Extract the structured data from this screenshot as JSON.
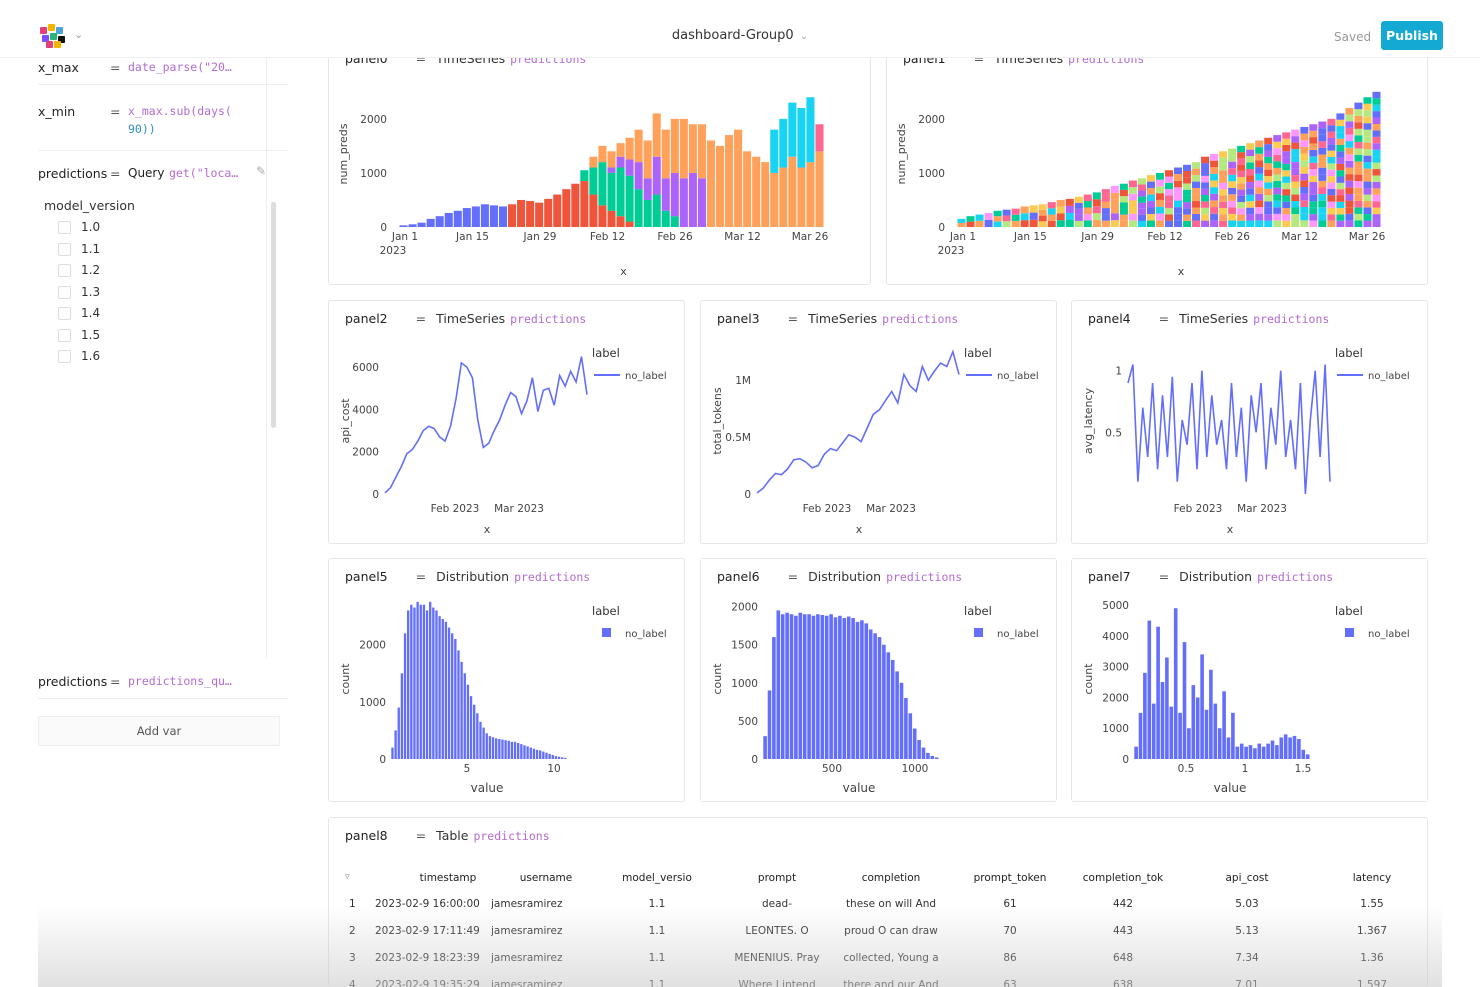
{
  "header": {
    "title": "dashboard-Group0",
    "saved_label": "Saved",
    "publish_label": "Publish",
    "logo_colors": [
      "#e23f7b",
      "#f4b400",
      "#4aa3df",
      "#7c4dff",
      "#2ab57d",
      "#111111"
    ]
  },
  "sidebar": {
    "vars": [
      {
        "name": "x_max",
        "expr_fn": "date_parse(\"20…",
        "expr_rest": ""
      },
      {
        "name": "x_min",
        "expr_fn": "x_max.sub(days(",
        "expr_rest": "90))"
      },
      {
        "name": "predictions",
        "expr_prefix": "Query",
        "expr_fn": "get(\"loca…"
      }
    ],
    "model_version_title": "model_version",
    "model_versions": [
      "1.0",
      "1.1",
      "1.2",
      "1.3",
      "1.4",
      "1.5",
      "1.6"
    ],
    "predictions2": {
      "name": "predictions",
      "expr": "predictions_qu…"
    },
    "add_var_label": "Add var"
  },
  "panels": {
    "panel0": {
      "name": "panel0",
      "type": "TimeSeries",
      "query": "predictions",
      "ylabel": "num_preds",
      "xlabel": "x",
      "yticks": [
        "2000",
        "1000",
        "0"
      ],
      "xticks": [
        "Jan 1",
        "Jan 15",
        "Jan 29",
        "Feb 12",
        "Feb 26",
        "Mar 12",
        "Mar 26"
      ],
      "year": "2023"
    },
    "panel1": {
      "name": "panel1",
      "type": "TimeSeries",
      "query": "predictions",
      "ylabel": "num_preds",
      "xlabel": "x",
      "yticks": [
        "2000",
        "1000",
        "0"
      ],
      "xticks": [
        "Jan 1",
        "Jan 15",
        "Jan 29",
        "Feb 12",
        "Feb 26",
        "Mar 12",
        "Mar 26"
      ],
      "year": "2023"
    },
    "panel2": {
      "name": "panel2",
      "type": "TimeSeries",
      "query": "predictions",
      "ylabel": "api_cost",
      "xlabel": "x",
      "yticks": [
        "6000",
        "4000",
        "2000",
        "0"
      ],
      "xticks": [
        "Feb 2023",
        "Mar 2023"
      ],
      "legend_title": "label",
      "legend_item": "no_label"
    },
    "panel3": {
      "name": "panel3",
      "type": "TimeSeries",
      "query": "predictions",
      "ylabel": "total_tokens",
      "xlabel": "x",
      "yticks": [
        "1M",
        "0.5M",
        "0"
      ],
      "xticks": [
        "Feb 2023",
        "Mar 2023"
      ],
      "legend_title": "label",
      "legend_item": "no_label"
    },
    "panel4": {
      "name": "panel4",
      "type": "TimeSeries",
      "query": "predictions",
      "ylabel": "avg_latency",
      "xlabel": "x",
      "yticks": [
        "1",
        "0.5"
      ],
      "xticks": [
        "Feb 2023",
        "Mar 2023"
      ],
      "legend_title": "label",
      "legend_item": "no_label"
    },
    "panel5": {
      "name": "panel5",
      "type": "Distribution",
      "query": "predictions",
      "ylabel": "count",
      "xlabel": "value",
      "yticks": [
        "2000",
        "1000",
        "0"
      ],
      "xticks": [
        "5",
        "10"
      ],
      "legend_title": "label",
      "legend_item": "no_label"
    },
    "panel6": {
      "name": "panel6",
      "type": "Distribution",
      "query": "predictions",
      "ylabel": "count",
      "xlabel": "value",
      "yticks": [
        "2000",
        "1500",
        "1000",
        "500",
        "0"
      ],
      "xticks": [
        "500",
        "1000"
      ],
      "legend_title": "label",
      "legend_item": "no_label"
    },
    "panel7": {
      "name": "panel7",
      "type": "Distribution",
      "query": "predictions",
      "ylabel": "count",
      "xlabel": "value",
      "yticks": [
        "5000",
        "4000",
        "3000",
        "2000",
        "1000",
        "0"
      ],
      "xticks": [
        "0.5",
        "1",
        "1.5"
      ],
      "legend_title": "label",
      "legend_item": "no_label"
    },
    "panel8": {
      "name": "panel8",
      "type": "Table",
      "query": "predictions"
    }
  },
  "colors": {
    "series": "#636efa",
    "accent": "#13a9d2"
  },
  "table": {
    "columns": [
      "timestamp",
      "username",
      "model_versio",
      "prompt",
      "completion",
      "prompt_token",
      "completion_tok",
      "api_cost",
      "latency"
    ],
    "rows": [
      [
        "1",
        "2023-02-9 16:00:00",
        "jamesramirez",
        "1.1",
        "dead-",
        "these on will And",
        "61",
        "442",
        "5.03",
        "1.55"
      ],
      [
        "2",
        "2023-02-9 17:11:49",
        "jamesramirez",
        "1.1",
        "LEONTES. O",
        "proud O can draw",
        "70",
        "443",
        "5.13",
        "1.367"
      ],
      [
        "3",
        "2023-02-9 18:23:39",
        "jamesramirez",
        "1.1",
        "MENENIUS. Pray",
        "collected, Young a",
        "86",
        "648",
        "7.34",
        "1.36"
      ],
      [
        "4",
        "2023-02-9 19:35:29",
        "jamesramirez",
        "1.1",
        "Where I intend",
        "there and our And",
        "63",
        "638",
        "7.01",
        "1.597"
      ]
    ]
  },
  "chart_data": [
    {
      "type": "bar",
      "panel": "panel0",
      "stacked": true,
      "ylabel": "num_preds",
      "xlabel": "x",
      "ylim": [
        0,
        2700
      ],
      "series": [
        {
          "name": "1.0",
          "color": "#636efa",
          "values": [
            30,
            50,
            80,
            150,
            200,
            260,
            300,
            350,
            380,
            420,
            400,
            380,
            0,
            0,
            0,
            0,
            0,
            0,
            0,
            0,
            0,
            0,
            0,
            0,
            0,
            0,
            0,
            0,
            0,
            0,
            0,
            0,
            0,
            0,
            0,
            0,
            0,
            0,
            0,
            0,
            0,
            0,
            0,
            0,
            0,
            0,
            0
          ]
        },
        {
          "name": "1.1",
          "color": "#ef553b",
          "values": [
            0,
            0,
            0,
            0,
            0,
            0,
            0,
            0,
            0,
            0,
            0,
            0,
            420,
            500,
            480,
            450,
            520,
            600,
            700,
            800,
            850,
            600,
            400,
            300,
            200,
            100,
            0,
            0,
            0,
            0,
            0,
            0,
            0,
            0,
            0,
            0,
            0,
            0,
            0,
            0,
            0,
            0,
            0,
            0,
            0,
            0,
            0
          ]
        },
        {
          "name": "1.2",
          "color": "#00cc96",
          "values": [
            0,
            0,
            0,
            0,
            0,
            0,
            0,
            0,
            0,
            0,
            0,
            0,
            0,
            0,
            0,
            0,
            0,
            0,
            0,
            0,
            200,
            500,
            800,
            700,
            900,
            850,
            700,
            500,
            600,
            300,
            200,
            0,
            0,
            0,
            0,
            0,
            0,
            0,
            0,
            0,
            0,
            0,
            0,
            0,
            0,
            0,
            0
          ]
        },
        {
          "name": "1.3",
          "color": "#ab63fa",
          "values": [
            0,
            0,
            0,
            0,
            0,
            0,
            0,
            0,
            0,
            0,
            0,
            0,
            0,
            0,
            0,
            0,
            0,
            0,
            0,
            0,
            0,
            0,
            0,
            100,
            200,
            300,
            500,
            400,
            700,
            600,
            800,
            900,
            1000,
            900,
            0,
            0,
            0,
            0,
            0,
            0,
            0,
            0,
            0,
            0,
            0,
            0,
            0
          ]
        },
        {
          "name": "1.4",
          "color": "#ffa15a",
          "values": [
            0,
            0,
            0,
            0,
            0,
            0,
            0,
            0,
            0,
            0,
            0,
            0,
            0,
            0,
            0,
            0,
            0,
            0,
            0,
            0,
            0,
            200,
            300,
            300,
            250,
            400,
            600,
            700,
            800,
            900,
            1000,
            1100,
            900,
            1000,
            1600,
            1500,
            1700,
            1800,
            1400,
            1300,
            1200,
            1000,
            1100,
            1300,
            1100,
            1200,
            1400
          ]
        },
        {
          "name": "1.5",
          "color": "#19d3f3",
          "values": [
            0,
            0,
            0,
            0,
            0,
            0,
            0,
            0,
            0,
            0,
            0,
            0,
            0,
            0,
            0,
            0,
            0,
            0,
            0,
            0,
            0,
            0,
            0,
            0,
            0,
            0,
            0,
            0,
            0,
            0,
            0,
            0,
            0,
            0,
            0,
            0,
            0,
            0,
            0,
            0,
            0,
            800,
            900,
            1000,
            1100,
            1200,
            0
          ]
        },
        {
          "name": "1.6",
          "color": "#ff6692",
          "values": [
            0,
            0,
            0,
            0,
            0,
            0,
            0,
            0,
            0,
            0,
            0,
            0,
            0,
            0,
            0,
            0,
            0,
            0,
            0,
            0,
            0,
            0,
            0,
            0,
            0,
            0,
            0,
            0,
            0,
            0,
            0,
            0,
            0,
            0,
            0,
            0,
            0,
            0,
            0,
            0,
            0,
            0,
            0,
            0,
            0,
            0,
            500
          ]
        }
      ]
    },
    {
      "type": "bar",
      "panel": "panel1",
      "stacked": true,
      "ylabel": "num_preds",
      "xlabel": "x",
      "ylim": [
        0,
        2700
      ],
      "totals": [
        150,
        200,
        230,
        260,
        300,
        320,
        340,
        380,
        400,
        420,
        460,
        500,
        520,
        560,
        600,
        640,
        700,
        760,
        800,
        860,
        900,
        960,
        1000,
        1050,
        1100,
        1150,
        1200,
        1300,
        1350,
        1400,
        1450,
        1500,
        1550,
        1600,
        1650,
        1700,
        1750,
        1800,
        1850,
        1900,
        1950,
        2000,
        2100,
        2200,
        2300,
        2400,
        2500
      ]
    },
    {
      "type": "line",
      "panel": "panel2",
      "ylabel": "api_cost",
      "xlabel": "x",
      "ylim": [
        0,
        7000
      ],
      "series_name": "no_label",
      "values": [
        50,
        300,
        800,
        1300,
        1900,
        2100,
        2500,
        3000,
        3200,
        3100,
        2700,
        2500,
        3200,
        4500,
        6200,
        6000,
        5500,
        3500,
        2200,
        2400,
        3000,
        3500,
        4200,
        4800,
        4600,
        3800,
        4400,
        5500,
        3900,
        4900,
        5000,
        4200,
        5600,
        5100,
        5800,
        5300,
        6500,
        4700
      ]
    },
    {
      "type": "line",
      "panel": "panel3",
      "ylabel": "total_tokens",
      "xlabel": "x",
      "ylim": [
        0,
        1300000
      ],
      "series_name": "no_label",
      "values": [
        10000,
        50000,
        120000,
        180000,
        170000,
        220000,
        300000,
        310000,
        280000,
        230000,
        250000,
        350000,
        400000,
        380000,
        450000,
        520000,
        500000,
        460000,
        580000,
        700000,
        740000,
        820000,
        900000,
        800000,
        1050000,
        950000,
        900000,
        1120000,
        1000000,
        1080000,
        1150000,
        1120000,
        1250000,
        1050000
      ]
    },
    {
      "type": "line",
      "panel": "panel4",
      "ylabel": "avg_latency",
      "xlabel": "x",
      "ylim": [
        0,
        1.2
      ],
      "series_name": "no_label",
      "values": [
        0.9,
        1.05,
        0.1,
        0.7,
        0.3,
        0.9,
        0.2,
        0.8,
        0.3,
        0.95,
        0.1,
        0.6,
        0.4,
        0.9,
        0.2,
        1.0,
        0.3,
        0.8,
        0.4,
        0.6,
        0.2,
        0.9,
        0.3,
        0.7,
        0.1,
        0.8,
        0.5,
        0.9,
        0.2,
        0.7,
        0.4,
        1.0,
        0.3,
        0.6,
        0.2,
        0.9,
        0.0,
        0.6,
        1.0,
        0.3,
        1.05,
        0.1
      ]
    },
    {
      "type": "bar",
      "panel": "panel5",
      "ylabel": "count",
      "xlabel": "value",
      "ylim": [
        0,
        2800
      ],
      "series_name": "no_label",
      "values": [
        200,
        500,
        900,
        1500,
        2200,
        2600,
        2700,
        2650,
        2750,
        2700,
        2700,
        2600,
        2750,
        2650,
        2600,
        2500,
        2450,
        2400,
        2300,
        2200,
        2100,
        1900,
        1700,
        1500,
        1300,
        1100,
        950,
        800,
        650,
        550,
        450,
        400,
        380,
        360,
        350,
        340,
        330,
        320,
        300,
        300,
        280,
        260,
        240,
        220,
        200,
        180,
        160,
        150,
        130,
        110,
        90,
        70,
        50,
        40,
        30,
        20
      ]
    },
    {
      "type": "bar",
      "panel": "panel6",
      "ylabel": "count",
      "xlabel": "value",
      "ylim": [
        0,
        2100
      ],
      "series_name": "no_label",
      "values": [
        300,
        900,
        1600,
        1950,
        1900,
        1920,
        1900,
        1880,
        1920,
        1900,
        1900,
        1880,
        1900,
        1890,
        1880,
        1900,
        1860,
        1880,
        1850,
        1870,
        1850,
        1800,
        1820,
        1780,
        1700,
        1650,
        1600,
        1500,
        1400,
        1300,
        1150,
        1000,
        800,
        600,
        400,
        250,
        150,
        80,
        40,
        20
      ]
    },
    {
      "type": "bar",
      "panel": "panel7",
      "ylabel": "count",
      "xlabel": "value",
      "ylim": [
        0,
        5200
      ],
      "series_name": "no_label",
      "values": [
        400,
        1500,
        2800,
        4500,
        1800,
        4300,
        2500,
        3300,
        1700,
        4900,
        1500,
        3800,
        1000,
        2400,
        2000,
        3400,
        1600,
        2900,
        1800,
        1000,
        2200,
        700,
        1500,
        400,
        500,
        400,
        450,
        350,
        500,
        400,
        500,
        600,
        450,
        700,
        800,
        700,
        750,
        650,
        300,
        150
      ]
    }
  ]
}
